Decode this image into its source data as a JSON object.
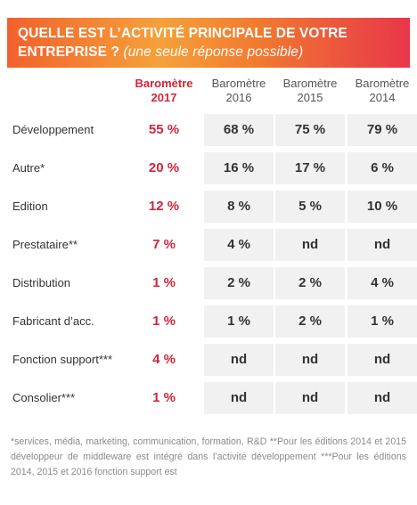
{
  "banner": {
    "title_line1": "QUELLE EST L’ACTIVITÉ PRINCIPALE DE VOTRE",
    "title_line2": "ENTREPRISE ?",
    "subtitle": "(une seule réponse possible)",
    "gradient_colors": [
      "#f2612c",
      "#f5a13a",
      "#e8364a"
    ]
  },
  "table": {
    "columns": [
      {
        "label": "Baromètre",
        "year": "2017",
        "highlight": true
      },
      {
        "label": "Baromètre",
        "year": "2016",
        "highlight": false
      },
      {
        "label": "Baromètre",
        "year": "2015",
        "highlight": false
      },
      {
        "label": "Baromètre",
        "year": "2014",
        "highlight": false
      }
    ],
    "rows": [
      {
        "label": "Développement",
        "values": [
          "55 %",
          "68 %",
          "75 %",
          "79 %"
        ]
      },
      {
        "label": "Autre*",
        "values": [
          "20 %",
          "16 %",
          "17 %",
          "6 %"
        ]
      },
      {
        "label": "Edition",
        "values": [
          "12 %",
          "8 %",
          "5 %",
          "10 %"
        ]
      },
      {
        "label": "Prestataire**",
        "values": [
          "7 %",
          "4 %",
          "nd",
          "nd"
        ]
      },
      {
        "label": "Distribution",
        "values": [
          "1 %",
          "2 %",
          "2 %",
          "4 %"
        ]
      },
      {
        "label": "Fabricant d’acc.",
        "values": [
          "1 %",
          "1 %",
          "2 %",
          "1 %"
        ]
      },
      {
        "label": "Fonction support***",
        "values": [
          "4 %",
          "nd",
          "nd",
          "nd"
        ]
      },
      {
        "label": "Consolier***",
        "values": [
          "1 %",
          "nd",
          "nd",
          "nd"
        ]
      }
    ],
    "highlight_color": "#d2243a"
  },
  "footnote": "*services, média, marketing, communication, formation, R&D **Pour les éditions 2014 et 2015 développeur de middleware est intégré dans l’activité développement ***Pour les éditions 2014, 2015 et 2016 fonction support est"
}
